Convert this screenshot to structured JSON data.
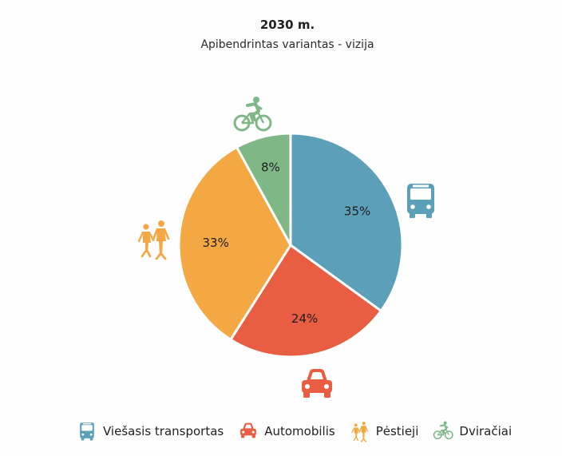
{
  "chart_data": {
    "type": "pie",
    "title": "2030 m.",
    "subtitle": "Apibendrintas variantas - vizija",
    "slices": [
      {
        "label": "Viešasis transportas",
        "value": 35,
        "display": "35%",
        "color": "#5ba0b8",
        "icon": "bus-icon"
      },
      {
        "label": "Automobilis",
        "value": 24,
        "display": "24%",
        "color": "#e95d42",
        "icon": "car-icon"
      },
      {
        "label": "Pėstieji",
        "value": 33,
        "display": "33%",
        "color": "#f3a844",
        "icon": "pedestrians-icon"
      },
      {
        "label": "Dviračiai",
        "value": 8,
        "display": "8%",
        "color": "#7fb886",
        "icon": "cyclist-icon"
      }
    ],
    "legend_position": "bottom"
  }
}
